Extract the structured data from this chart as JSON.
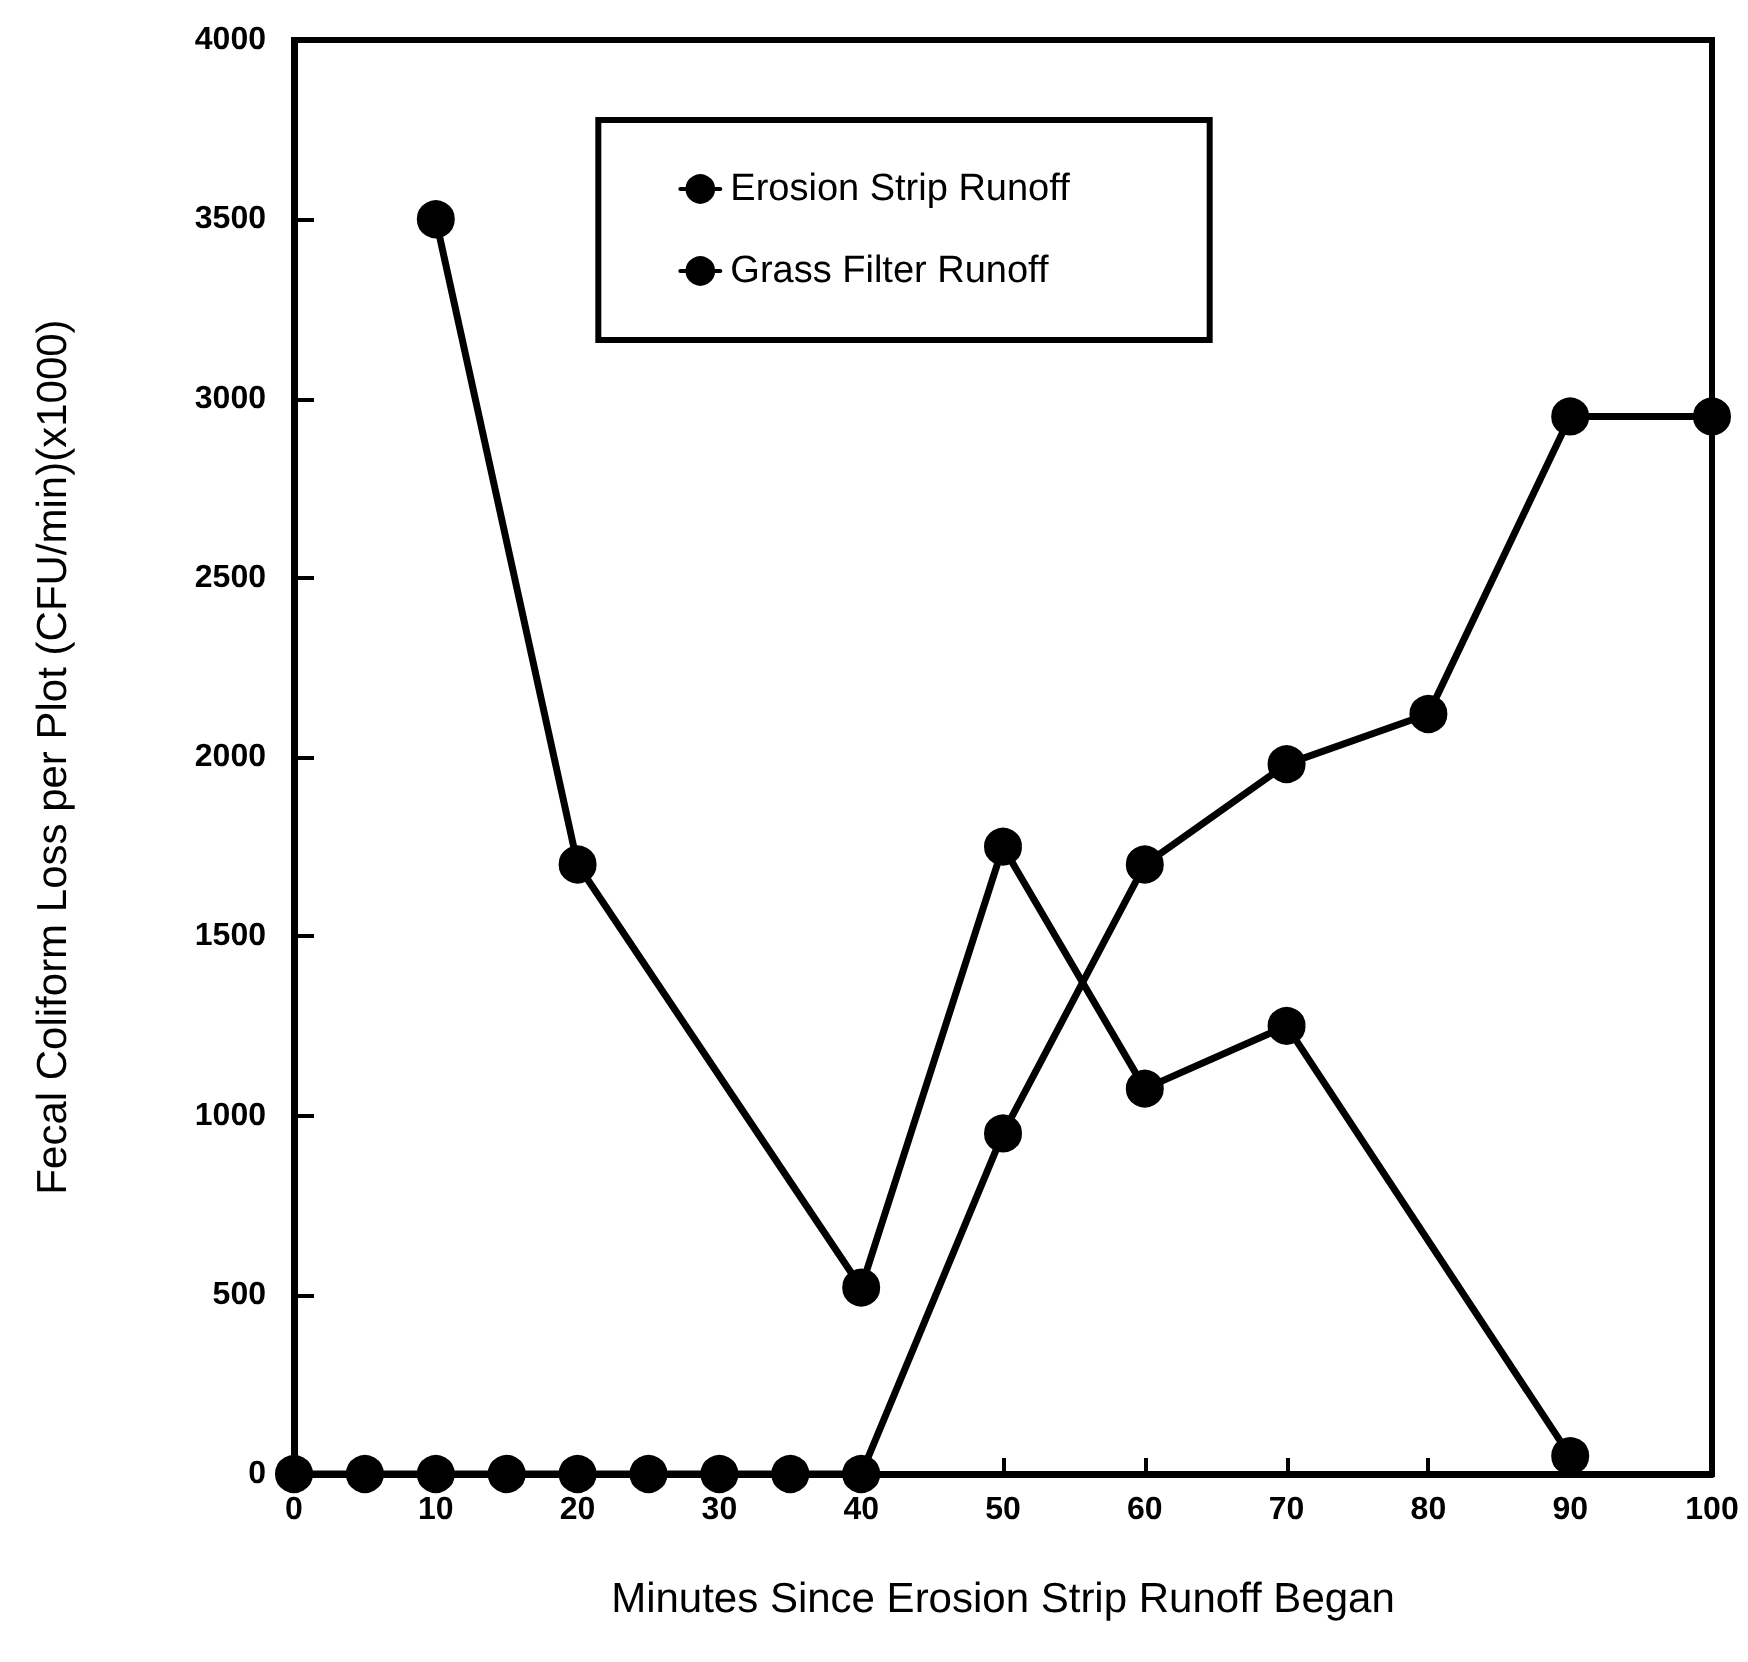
{
  "chart_data": {
    "type": "line",
    "xlabel": "Minutes Since Erosion Strip Runoff Began",
    "ylabel": "Fecal Coliform Loss per Plot (CFU/min)(x1000)",
    "xlim": [
      0,
      100
    ],
    "xticks": [
      0,
      10,
      20,
      30,
      40,
      50,
      60,
      70,
      80,
      90,
      100
    ],
    "ylim": [
      0,
      4000
    ],
    "yticks": [
      0,
      500,
      1000,
      1500,
      2000,
      2500,
      3000,
      3500,
      4000
    ],
    "grid": false,
    "legend": "top",
    "marker": "circle",
    "line_style": "solid",
    "series": [
      {
        "name": "Erosion Strip Runoff",
        "color": "#000000",
        "x": [
          10,
          20,
          40,
          50,
          60,
          70,
          90
        ],
        "values": [
          3500,
          1700,
          520,
          1750,
          1075,
          1250,
          50
        ]
      },
      {
        "name": "Grass Filter Runoff",
        "color": "#000000",
        "x": [
          0,
          5,
          10,
          15,
          20,
          25,
          30,
          35,
          40,
          50,
          60,
          70,
          80,
          90,
          100
        ],
        "values": [
          0,
          0,
          0,
          0,
          0,
          0,
          0,
          0,
          0,
          950,
          1700,
          1980,
          2120,
          2950,
          2950
        ]
      }
    ]
  }
}
